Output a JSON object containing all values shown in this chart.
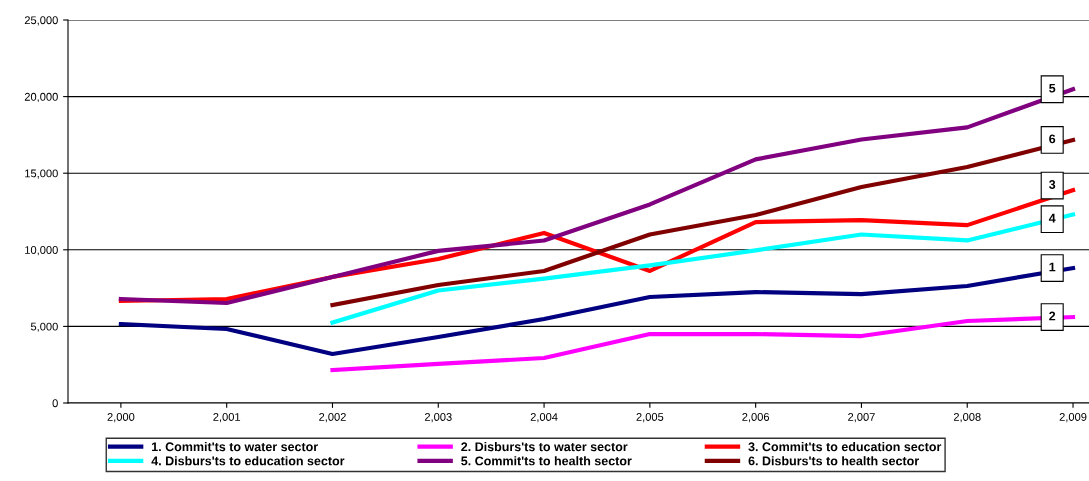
{
  "chart_data": {
    "type": "line",
    "categories": [
      "2,000",
      "2,001",
      "2,002",
      "2,003",
      "2,004",
      "2,005",
      "2,006",
      "2,007",
      "2,008",
      "2,009"
    ],
    "ylim": [
      0,
      25000
    ],
    "yticks": [
      {
        "value": 0,
        "label": "0"
      },
      {
        "value": 5000,
        "label": "5,000"
      },
      {
        "value": 10000,
        "label": "10,000"
      },
      {
        "value": 15000,
        "label": "15,000"
      },
      {
        "value": 20000,
        "label": "20,000"
      },
      {
        "value": 25000,
        "label": "25,000"
      }
    ],
    "grid": "y",
    "legend": "bottom",
    "marker": "none",
    "line_style": "solid",
    "series": [
      {
        "name": "1. Commit'ts to water sector",
        "color": "#000080",
        "values": [
          5150,
          4830,
          3200,
          4310,
          5480,
          6920,
          7240,
          7110,
          7640,
          8810
        ]
      },
      {
        "name": "2. Disburs'ts to water sector",
        "color": "#ff00ff",
        "values": [
          null,
          null,
          2150,
          2550,
          2940,
          4500,
          4500,
          4370,
          5350,
          5610
        ]
      },
      {
        "name": "3. Commit'ts to education sector",
        "color": "#ff0000",
        "values": [
          6660,
          6790,
          8230,
          9400,
          11100,
          8620,
          11810,
          11940,
          11610,
          13890
        ]
      },
      {
        "name": "4. Disburs'ts to education sector",
        "color": "#00ffff",
        "values": [
          null,
          null,
          5250,
          7340,
          8120,
          8980,
          9960,
          11000,
          10610,
          12300
        ]
      },
      {
        "name": "5. Commit'ts to health sector",
        "color": "#800080",
        "values": [
          6790,
          6530,
          8230,
          9930,
          10610,
          12960,
          15900,
          17200,
          17990,
          20480
        ]
      },
      {
        "name": "6. Disburs'ts to health sector",
        "color": "#800000",
        "values": [
          null,
          null,
          6400,
          7700,
          8620,
          11000,
          12270,
          14100,
          15400,
          17170
        ]
      }
    ],
    "annotations": [
      {
        "text": "5",
        "x": "2,009",
        "y": 20480
      },
      {
        "text": "6",
        "x": "2,009",
        "y": 17170
      },
      {
        "text": "3",
        "x": "2,009",
        "y": 13890
      },
      {
        "text": "4",
        "x": "2,009",
        "y": 12300
      },
      {
        "text": "1",
        "x": "2,009",
        "y": 8810
      },
      {
        "text": "2",
        "x": "2,009",
        "y": 5610
      }
    ]
  }
}
